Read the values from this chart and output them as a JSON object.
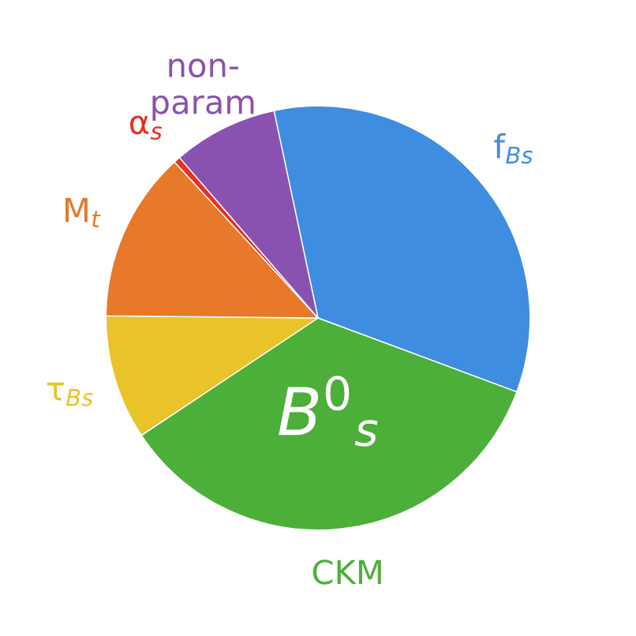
{
  "chart_data": {
    "type": "pie",
    "categories": [
      "f$_{Bs}$",
      "CKM",
      "τ$_{Bs}$",
      "M$_{t}$",
      "α$_{s}$",
      "non-\nparam"
    ],
    "values": [
      34,
      35,
      9.5,
      13,
      0.5,
      8
    ],
    "colors": [
      "#3f8de0",
      "#4caf3a",
      "#e8c42a",
      "#e8782a",
      "#e83020",
      "#8a52b0"
    ],
    "annotations": [
      "B$^{0}$$_{s}$"
    ]
  }
}
